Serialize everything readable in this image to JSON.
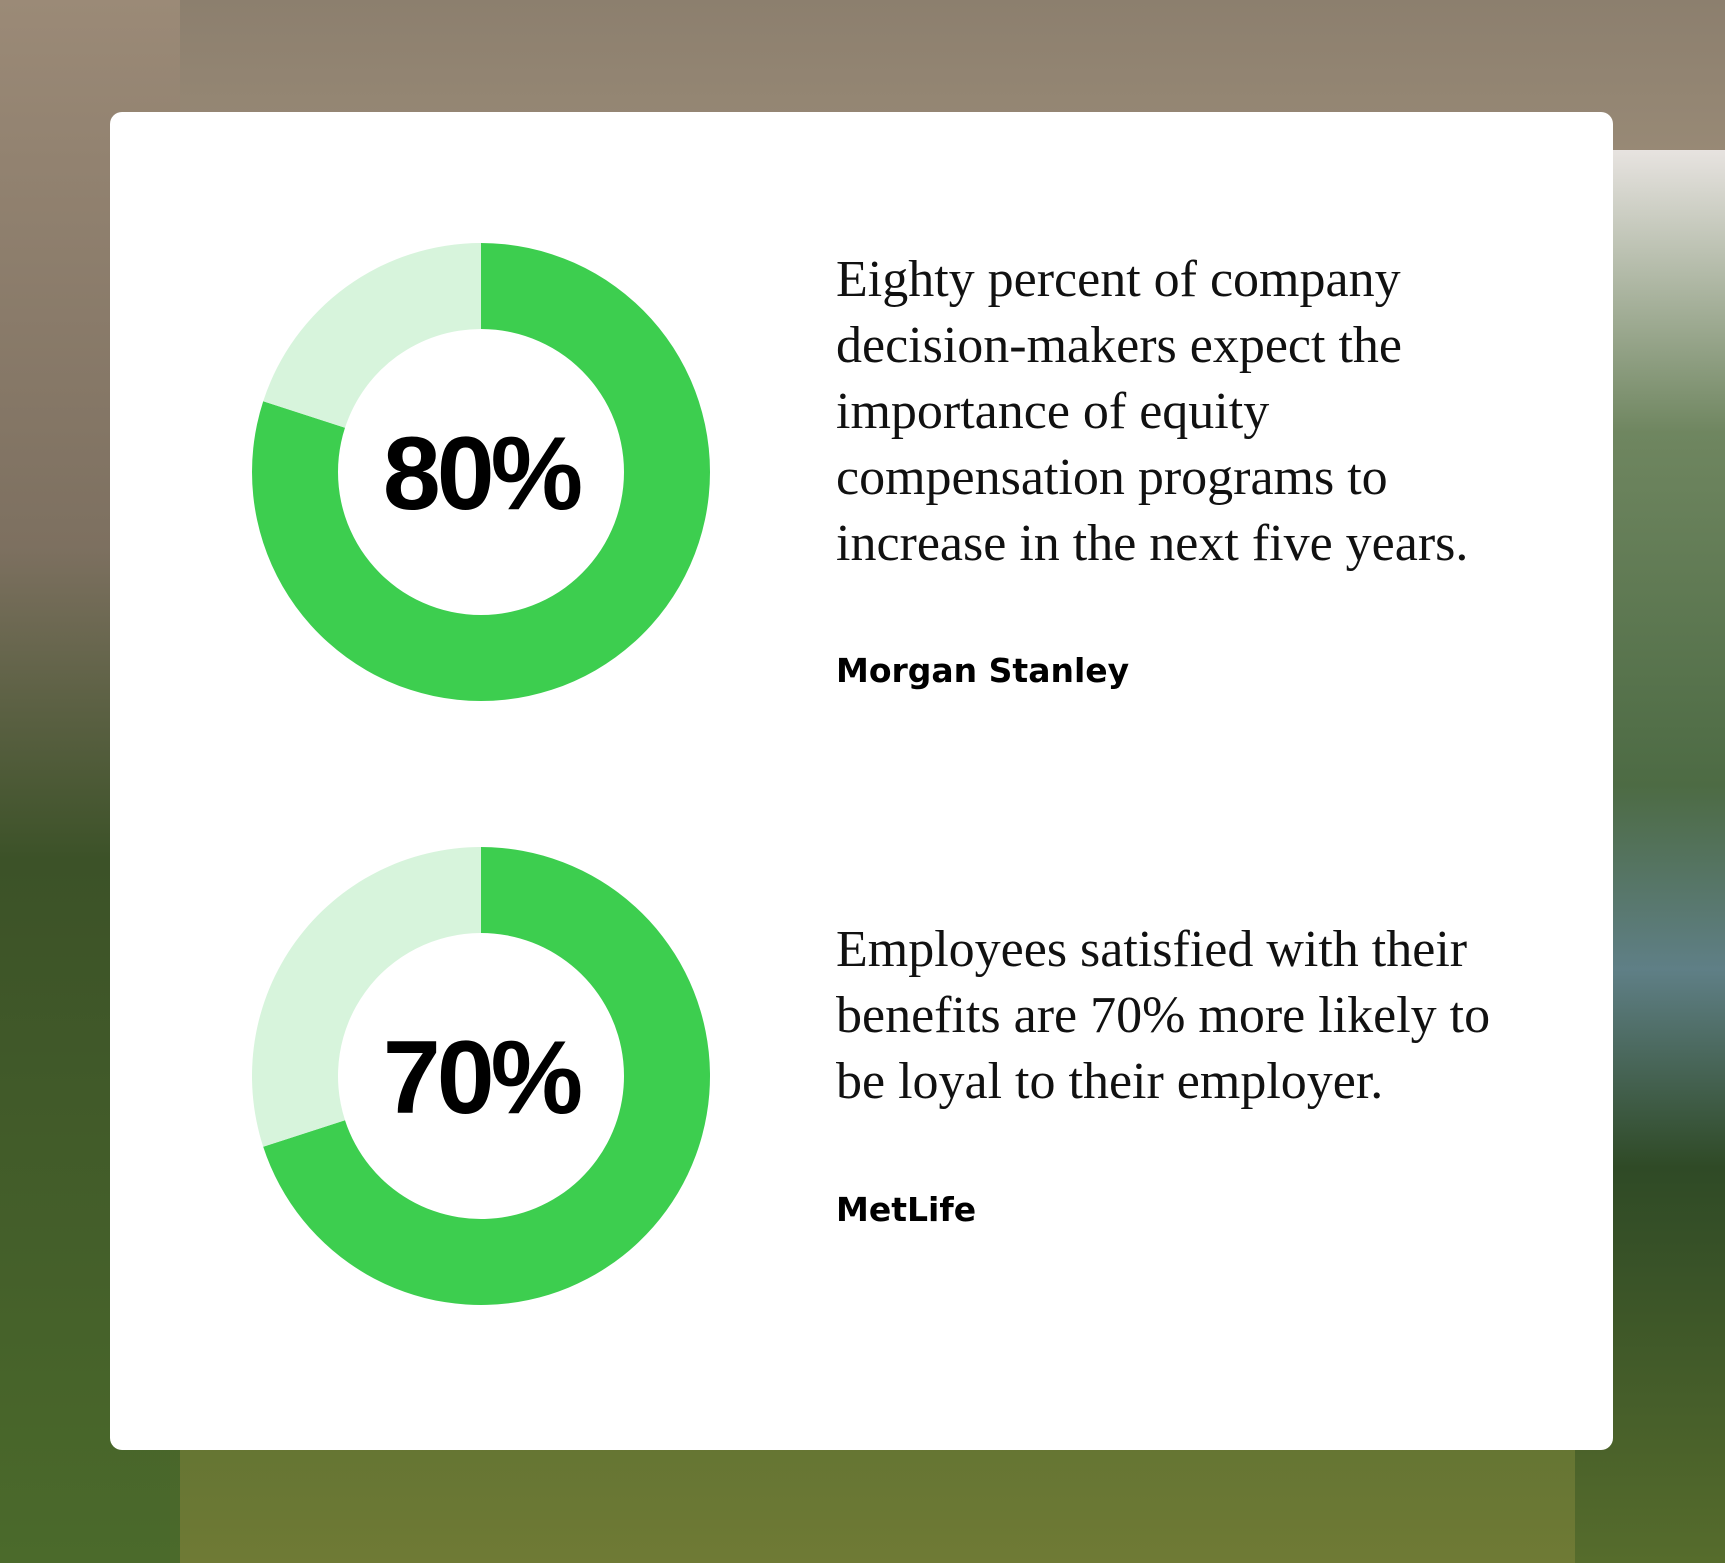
{
  "chart_data": [
    {
      "type": "donut",
      "categories": [
        null,
        null
      ],
      "values": [
        80,
        20
      ],
      "colors": [
        "#3dce4f",
        "#d7f4dc"
      ],
      "value_labels": [
        "80%",
        null
      ],
      "annotation_lines": [
        "Eighty percent of company",
        "decision-makers expect the",
        "importance of equity",
        "compensation programs to",
        "increase in the next five years."
      ],
      "source": "Morgan Stanley"
    },
    {
      "type": "donut",
      "categories": [
        null,
        null
      ],
      "values": [
        70,
        30
      ],
      "colors": [
        "#3dce4f",
        "#d7f4dc"
      ],
      "value_labels": [
        "70%",
        null
      ],
      "annotation_lines": [
        "Employees satisfied with their",
        "benefits are 70% more likely to",
        "be loyal to their employer."
      ],
      "source": "MetLife"
    }
  ]
}
